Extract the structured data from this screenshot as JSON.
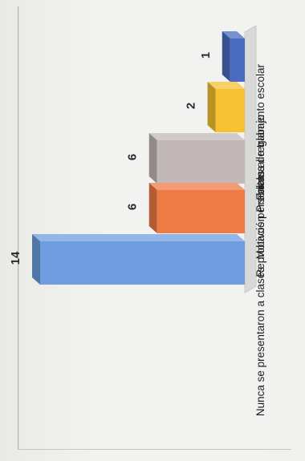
{
  "chart_data": {
    "type": "bar",
    "orientation": "3d-columns, image rotated 90° counter-clockwise",
    "categories": [
      "Faltas al reglamento escolar",
      "Problema de trabajo",
      "Motivos personales",
      "Reprobación",
      "Nunca se presentaron a clases"
    ],
    "values": [
      1,
      2,
      6,
      6,
      14
    ],
    "data_labels": [
      "1",
      "2",
      "6",
      "6",
      "14"
    ],
    "colors": [
      "#4a6cc0",
      "#f6c233",
      "#c2b8b8",
      "#ef7b46",
      "#6f9de0"
    ],
    "ylim": [
      0,
      14
    ],
    "grid": false,
    "legend": "none"
  }
}
